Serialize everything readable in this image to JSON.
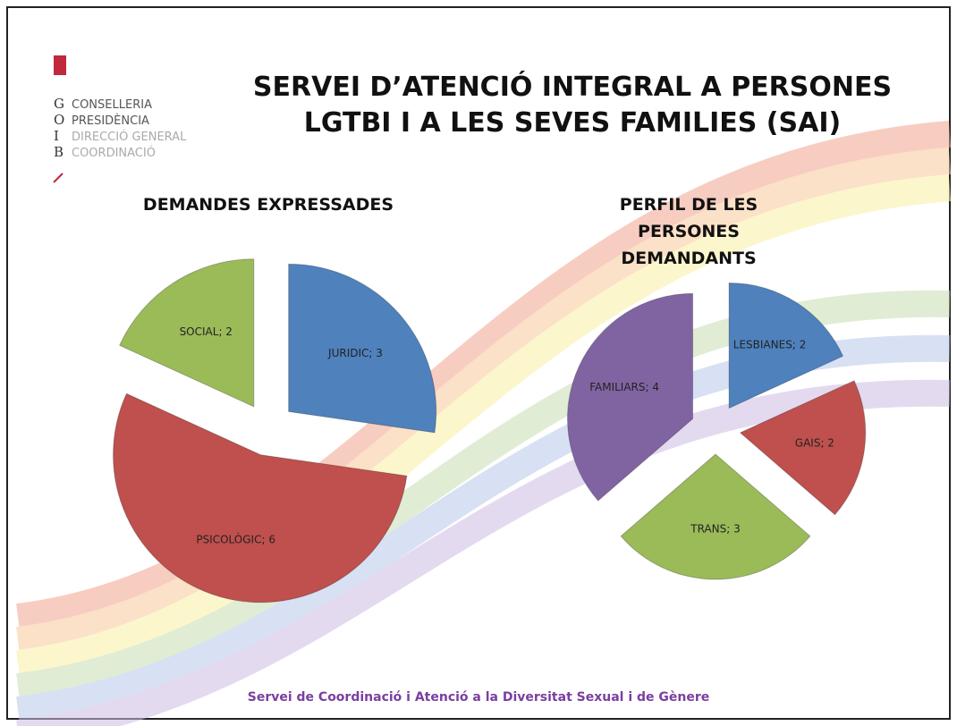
{
  "logo": {
    "lines": [
      {
        "letter": "G",
        "text": "CONSELLERIA"
      },
      {
        "letter": "O",
        "text": "PRESIDÈNCIA"
      },
      {
        "letter": "I",
        "text": "DIRECCIÓ GENERAL"
      },
      {
        "letter": "B",
        "text": "COORDINACIÓ"
      }
    ]
  },
  "header": {
    "title_lines": [
      "SERVEI D’ATENCIÓ INTEGRAL A PERSONES",
      "LGTBI I A LES SEVES FAMILIES (SAI)"
    ]
  },
  "chart_data": [
    {
      "type": "pie",
      "title": "DEMANDES EXPRESSADES",
      "values": [
        3,
        6,
        2
      ],
      "value_labels": [
        "JURIDIC; 3",
        "PSICOLÒGIC; 6",
        "SOCIAL; 2"
      ],
      "colors": [
        "#4f81bd",
        "#c0504d",
        "#9bbb59"
      ]
    },
    {
      "type": "pie",
      "title": "PERFIL DE LES PERSONES DEMANDANTS",
      "values": [
        2,
        2,
        3,
        4
      ],
      "value_labels": [
        "LESBIANES; 2",
        "GAIS; 2",
        "TRANS; 3",
        "FAMILIARS; 4"
      ],
      "colors": [
        "#4f81bd",
        "#c0504d",
        "#9bbb59",
        "#8064a2"
      ]
    }
  ],
  "footer": "Servei de Coordinació i Atenció a la Diversitat Sexual i de Gènere"
}
